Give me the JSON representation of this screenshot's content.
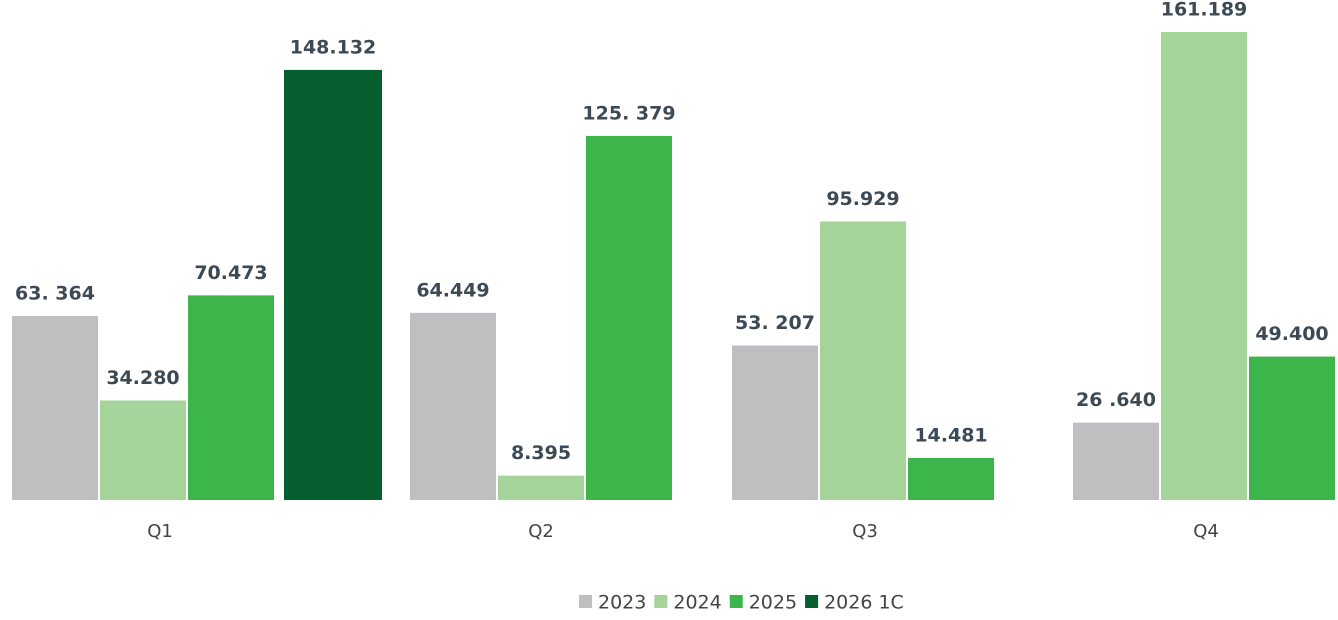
{
  "chart_data": {
    "type": "bar",
    "categories": [
      "Q1",
      "Q2",
      "Q3",
      "Q4"
    ],
    "series": [
      {
        "name": "2023",
        "color": "#bfbfc1",
        "values": [
          63364,
          64449,
          53207,
          26640
        ],
        "value_labels": [
          "63. 364",
          "64.449",
          "53. 207",
          "26 .640"
        ]
      },
      {
        "name": "2024",
        "color": "#a5d49b",
        "values": [
          34280,
          8395,
          95929,
          161189
        ],
        "value_labels": [
          "34.280",
          "8.395",
          "95.929",
          "161.189"
        ]
      },
      {
        "name": "2025",
        "color": "#3cb54a",
        "values": [
          70473,
          125379,
          14481,
          49400
        ],
        "value_labels": [
          "70.473",
          "125. 379",
          "14.481",
          "49.400"
        ]
      },
      {
        "name": "2026 1C",
        "color": "#055e2e",
        "values": [
          148132,
          null,
          null,
          null
        ],
        "value_labels": [
          "148.132",
          null,
          null,
          null
        ]
      }
    ],
    "legend": "bottom"
  }
}
